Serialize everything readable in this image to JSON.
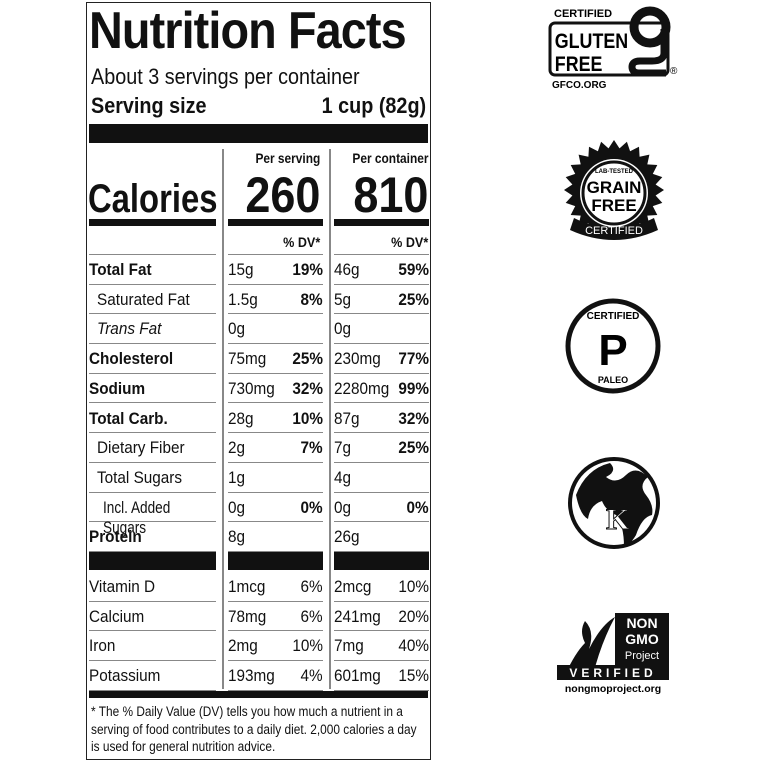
{
  "label": {
    "title": "Nutrition Facts",
    "servings_per_container": "About 3 servings per container",
    "serving_size_label": "Serving size",
    "serving_size_value": "1 cup (82g)",
    "per_serving_header": "Per serving",
    "per_container_header": "Per container",
    "calories_label": "Calories",
    "calories_per_serving": "260",
    "calories_per_container": "810",
    "dv_header": "% DV*",
    "nutrients": [
      {
        "name": "Total Fat",
        "bold": true,
        "indent": 0,
        "italic": false,
        "serving_amount": "15g",
        "serving_dv": "19%",
        "container_amount": "46g",
        "container_dv": "59%"
      },
      {
        "name": "Saturated Fat",
        "bold": false,
        "indent": 1,
        "italic": false,
        "serving_amount": "1.5g",
        "serving_dv": "8%",
        "container_amount": "5g",
        "container_dv": "25%"
      },
      {
        "name": "Trans Fat",
        "bold": false,
        "indent": 1,
        "italic": true,
        "serving_amount": "0g",
        "serving_dv": "",
        "container_amount": "0g",
        "container_dv": ""
      },
      {
        "name": "Cholesterol",
        "bold": true,
        "indent": 0,
        "italic": false,
        "serving_amount": "75mg",
        "serving_dv": "25%",
        "container_amount": "230mg",
        "container_dv": "77%"
      },
      {
        "name": "Sodium",
        "bold": true,
        "indent": 0,
        "italic": false,
        "serving_amount": "730mg",
        "serving_dv": "32%",
        "container_amount": "2280mg",
        "container_dv": "99%"
      },
      {
        "name": "Total Carb.",
        "bold": true,
        "indent": 0,
        "italic": false,
        "serving_amount": "28g",
        "serving_dv": "10%",
        "container_amount": "87g",
        "container_dv": "32%"
      },
      {
        "name": "Dietary Fiber",
        "bold": false,
        "indent": 1,
        "italic": false,
        "serving_amount": "2g",
        "serving_dv": "7%",
        "container_amount": "7g",
        "container_dv": "25%"
      },
      {
        "name": "Total Sugars",
        "bold": false,
        "indent": 1,
        "italic": false,
        "serving_amount": "1g",
        "serving_dv": "",
        "container_amount": "4g",
        "container_dv": ""
      },
      {
        "name": "Incl. Added Sugars",
        "bold": false,
        "indent": 2,
        "italic": false,
        "serving_amount": "0g",
        "serving_dv": "0%",
        "container_amount": "0g",
        "container_dv": "0%"
      },
      {
        "name": "Protein",
        "bold": true,
        "indent": 0,
        "italic": false,
        "serving_amount": "8g",
        "serving_dv": "",
        "container_amount": "26g",
        "container_dv": ""
      }
    ],
    "vitamins": [
      {
        "name": "Vitamin D",
        "serving_amount": "1mcg",
        "serving_dv": "6%",
        "container_amount": "2mcg",
        "container_dv": "10%"
      },
      {
        "name": "Calcium",
        "serving_amount": "78mg",
        "serving_dv": "6%",
        "container_amount": "241mg",
        "container_dv": "20%"
      },
      {
        "name": "Iron",
        "serving_amount": "2mg",
        "serving_dv": "10%",
        "container_amount": "7mg",
        "container_dv": "40%"
      },
      {
        "name": "Potassium",
        "serving_amount": "193mg",
        "serving_dv": "4%",
        "container_amount": "601mg",
        "container_dv": "15%"
      }
    ],
    "footnote": "* The % Daily Value (DV) tells you how much a nutrient in a serving of food contributes to a daily diet. 2,000 calories a day is used for general nutrition advice."
  },
  "certifications": {
    "gluten_free": {
      "top": "CERTIFIED",
      "line1": "GLUTEN",
      "line2": "FREE",
      "site": "GFCO.ORG",
      "mark": "®"
    },
    "grain_free": {
      "top": "LAB-TESTED",
      "line1": "GRAIN",
      "line2": "FREE",
      "bottom": "CERTIFIED"
    },
    "paleo": {
      "top": "CERTIFIED",
      "letter": "P",
      "bottom": "PALEO"
    },
    "kosher": {
      "letter": "K"
    },
    "non_gmo": {
      "line1": "NON",
      "line2": "GMO",
      "line3": "Project",
      "verified": "VERIFIED",
      "site": "nongmoproject.org"
    }
  }
}
